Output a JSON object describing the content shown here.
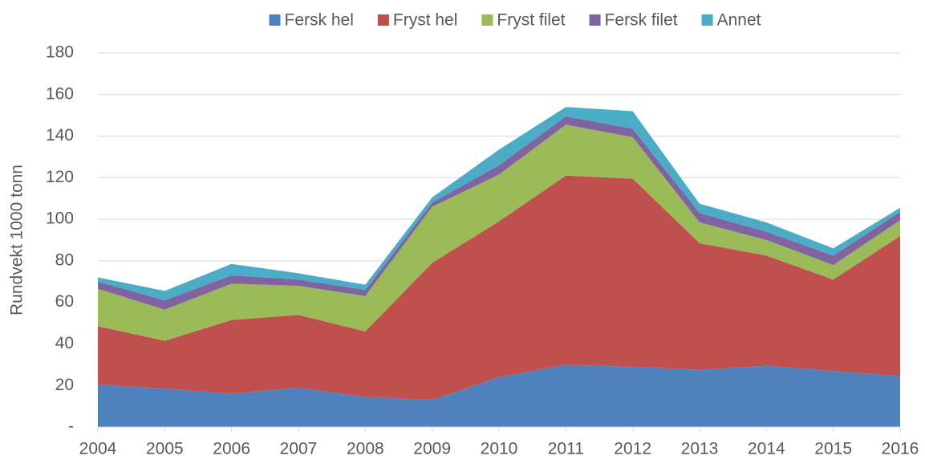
{
  "chart_data": {
    "type": "stacked_area",
    "y_label": "Rundvekt 1000 tonn",
    "x": [
      2004,
      2005,
      2006,
      2007,
      2008,
      2009,
      2010,
      2011,
      2012,
      2013,
      2014,
      2015,
      2016
    ],
    "xlim": [
      2004,
      2016
    ],
    "xticks": [
      2004,
      2005,
      2006,
      2007,
      2008,
      2009,
      2010,
      2011,
      2012,
      2013,
      2014,
      2015,
      2016
    ],
    "ylim": [
      0,
      180
    ],
    "yticks": [
      {
        "value": 0,
        "label": "-"
      },
      20,
      40,
      60,
      80,
      100,
      120,
      140,
      160,
      180
    ],
    "grid": true,
    "legend": "top",
    "series": [
      {
        "name": "Fersk hel",
        "color": "#4f81bd",
        "values": [
          20.5,
          18.5,
          16,
          19,
          14.5,
          13,
          24,
          30,
          29,
          27.5,
          29.5,
          27,
          24.5
        ]
      },
      {
        "name": "Fryst hel",
        "color": "#c0504d",
        "values": [
          28,
          23,
          35.5,
          35,
          31.5,
          66,
          75,
          91,
          90.5,
          61,
          53,
          44,
          67.5
        ]
      },
      {
        "name": "Fryst filet",
        "color": "#9bbb59",
        "values": [
          18,
          15,
          17.5,
          14,
          17,
          27,
          22.5,
          24.5,
          20,
          10,
          7.5,
          7,
          7.5
        ]
      },
      {
        "name": "Fersk filet",
        "color": "#8064a2",
        "values": [
          3.5,
          4.5,
          4,
          3,
          3,
          2,
          4.5,
          4,
          4,
          4.5,
          4,
          4.5,
          4
        ]
      },
      {
        "name": "Annet",
        "color": "#4bacc6",
        "values": [
          2,
          4.5,
          5.5,
          3,
          2.5,
          2.5,
          7.5,
          4.5,
          8.5,
          4.5,
          4.5,
          3.5,
          2
        ]
      }
    ]
  }
}
